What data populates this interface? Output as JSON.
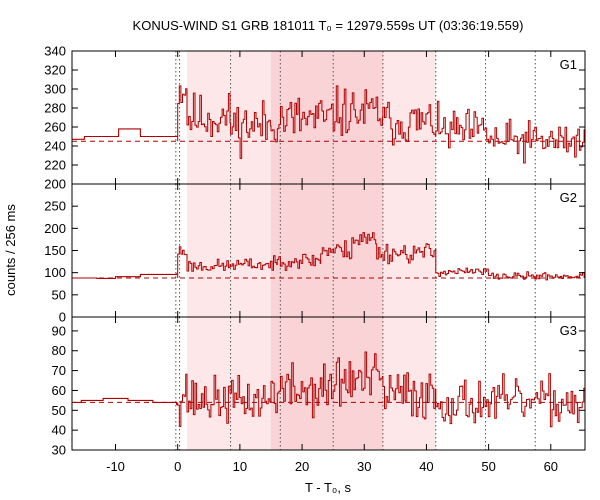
{
  "chart_data": {
    "type": "line",
    "title": "KONUS-WIND S1 GRB 181011 T₀ = 12979.559s UT (03:36:19.559)",
    "xlabel": "T - T₀, s",
    "ylabel": "counts / 256 ms",
    "xlim": [
      -17,
      65.5
    ],
    "xticks": [
      -10,
      0,
      10,
      20,
      30,
      40,
      50,
      60
    ],
    "colors": {
      "data": "#b00000",
      "background_level": "#b00000",
      "shade_light": "#fde7e9",
      "shade_dark": "#fad3d7",
      "guide": "#555555"
    },
    "shaded_intervals": [
      {
        "from": 1.5,
        "to": 41.5,
        "tone": "light"
      },
      {
        "from": 15,
        "to": 33,
        "tone": "dark"
      }
    ],
    "vertical_guides": [
      -0.3,
      0.3,
      8.5,
      16.5,
      25,
      33,
      41.5,
      49.5,
      57.5
    ],
    "panels": [
      {
        "label": "G1",
        "ylim": [
          200,
          340
        ],
        "yticks": [
          200,
          220,
          240,
          260,
          280,
          300,
          320,
          340
        ],
        "background_level": 245,
        "pre_trigger_steps": [
          {
            "x": -17,
            "y": 247
          },
          {
            "x": -15,
            "y": 250
          },
          {
            "x": -9.5,
            "y": 258
          },
          {
            "x": -6,
            "y": 250
          },
          {
            "x": -0.2,
            "y": 250
          }
        ],
        "segments": [
          {
            "from": 0,
            "to": 1.5,
            "mean": 300,
            "sd": 15
          },
          {
            "from": 1.5,
            "to": 8.5,
            "mean": 270,
            "sd": 16
          },
          {
            "from": 8.5,
            "to": 15,
            "mean": 262,
            "sd": 16
          },
          {
            "from": 15,
            "to": 25,
            "mean": 268,
            "sd": 17
          },
          {
            "from": 25,
            "to": 33,
            "mean": 275,
            "sd": 16
          },
          {
            "from": 33,
            "to": 41.5,
            "mean": 265,
            "sd": 15
          },
          {
            "from": 41.5,
            "to": 50,
            "mean": 255,
            "sd": 14
          },
          {
            "from": 50,
            "to": 65.5,
            "mean": 245,
            "sd": 13
          }
        ],
        "seed": 11
      },
      {
        "label": "G2",
        "ylim": [
          0,
          300
        ],
        "yticks": [
          0,
          50,
          100,
          150,
          200,
          250
        ],
        "background_level": 88,
        "pre_trigger_steps": [
          {
            "x": -17,
            "y": 88
          },
          {
            "x": -13,
            "y": 87
          },
          {
            "x": -10,
            "y": 91
          },
          {
            "x": -6,
            "y": 96
          },
          {
            "x": -0.2,
            "y": 97
          }
        ],
        "segments": [
          {
            "from": 0,
            "to": 1.5,
            "mean": 148,
            "sd": 12
          },
          {
            "from": 1.5,
            "to": 8.5,
            "mean": 115,
            "sd": 9
          },
          {
            "from": 8.5,
            "to": 16,
            "mean": 118,
            "sd": 9
          },
          {
            "from": 16,
            "to": 23,
            "mean": 128,
            "sd": 11
          },
          {
            "from": 23,
            "to": 28,
            "mean": 150,
            "sd": 14
          },
          {
            "from": 28,
            "to": 32,
            "mean": 175,
            "sd": 18
          },
          {
            "from": 32,
            "to": 41.5,
            "mean": 145,
            "sd": 14
          },
          {
            "from": 41.5,
            "to": 50,
            "mean": 102,
            "sd": 6
          },
          {
            "from": 50,
            "to": 65.5,
            "mean": 92,
            "sd": 5
          }
        ],
        "seed": 23
      },
      {
        "label": "G3",
        "ylim": [
          30,
          97
        ],
        "yticks": [
          30,
          40,
          50,
          60,
          70,
          80,
          90
        ],
        "background_level": 54,
        "pre_trigger_steps": [
          {
            "x": -17,
            "y": 54
          },
          {
            "x": -15.5,
            "y": 55
          },
          {
            "x": -12,
            "y": 56
          },
          {
            "x": -8,
            "y": 55
          },
          {
            "x": -4,
            "y": 54
          },
          {
            "x": -0.2,
            "y": 53
          }
        ],
        "segments": [
          {
            "from": 0,
            "to": 1.5,
            "mean": 60,
            "sd": 10
          },
          {
            "from": 1.5,
            "to": 15,
            "mean": 55,
            "sd": 7
          },
          {
            "from": 15,
            "to": 25,
            "mean": 60,
            "sd": 8
          },
          {
            "from": 25,
            "to": 33,
            "mean": 65,
            "sd": 9
          },
          {
            "from": 33,
            "to": 41.5,
            "mean": 58,
            "sd": 8
          },
          {
            "from": 41.5,
            "to": 65.5,
            "mean": 54,
            "sd": 7
          }
        ],
        "seed": 37
      }
    ]
  }
}
